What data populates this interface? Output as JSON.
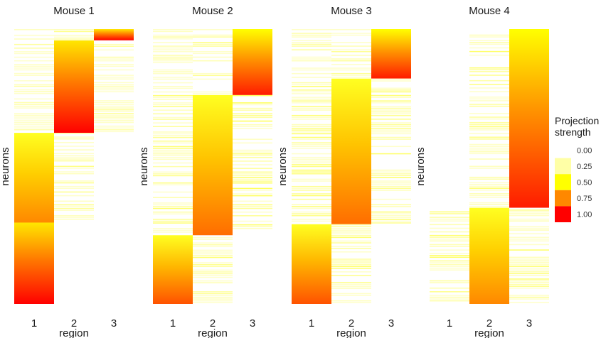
{
  "chart_data": {
    "type": "heatmap",
    "ylabel": "neurons",
    "xlabel": "region",
    "categories": [
      "1",
      "2",
      "3"
    ],
    "legend": {
      "title_lines": [
        "Projection",
        "strength"
      ],
      "ticks": [
        "0.00",
        "0.25",
        "0.50",
        "0.75",
        "1.00"
      ],
      "colors": [
        "#ffffff",
        "#ffffa6",
        "#ffff00",
        "#ff8800",
        "#ff0000"
      ],
      "placement": "right"
    },
    "panels": [
      {
        "title": "Mouse 1",
        "groups": [
          {
            "name": "region-3-dominant",
            "size": 0.04,
            "strength": [
              0.15,
              0.25,
              1.0
            ]
          },
          {
            "name": "region-2-dominant",
            "size": 0.33,
            "strength": [
              0.12,
              1.0,
              0.15
            ]
          },
          {
            "name": "region-1-moderate",
            "size": 0.32,
            "strength": [
              0.75,
              0.18,
              0.0
            ]
          },
          {
            "name": "region-1-strong",
            "size": 0.29,
            "strength": [
              1.0,
              0.0,
              0.0
            ]
          }
        ]
      },
      {
        "title": "Mouse 2",
        "groups": [
          {
            "name": "region-3-dominant",
            "size": 0.24,
            "strength": [
              0.12,
              0.15,
              0.95
            ]
          },
          {
            "name": "region-2-dominant",
            "size": 0.51,
            "strength": [
              0.2,
              0.8,
              0.22
            ]
          },
          {
            "name": "region-1-dominant",
            "size": 0.25,
            "strength": [
              0.85,
              0.2,
              0.0
            ]
          }
        ]
      },
      {
        "title": "Mouse 3",
        "groups": [
          {
            "name": "region-3-dominant",
            "size": 0.18,
            "strength": [
              0.12,
              0.15,
              0.95
            ]
          },
          {
            "name": "region-2-dominant",
            "size": 0.53,
            "strength": [
              0.2,
              0.8,
              0.2
            ]
          },
          {
            "name": "region-1-dominant",
            "size": 0.29,
            "strength": [
              0.85,
              0.2,
              0.0
            ]
          }
        ]
      },
      {
        "title": "Mouse 4",
        "groups": [
          {
            "name": "region-3-dominant",
            "size": 0.65,
            "strength": [
              0.01,
              0.2,
              0.95
            ]
          },
          {
            "name": "region-2-dominant",
            "size": 0.35,
            "strength": [
              0.2,
              0.75,
              0.2
            ]
          }
        ]
      }
    ]
  }
}
